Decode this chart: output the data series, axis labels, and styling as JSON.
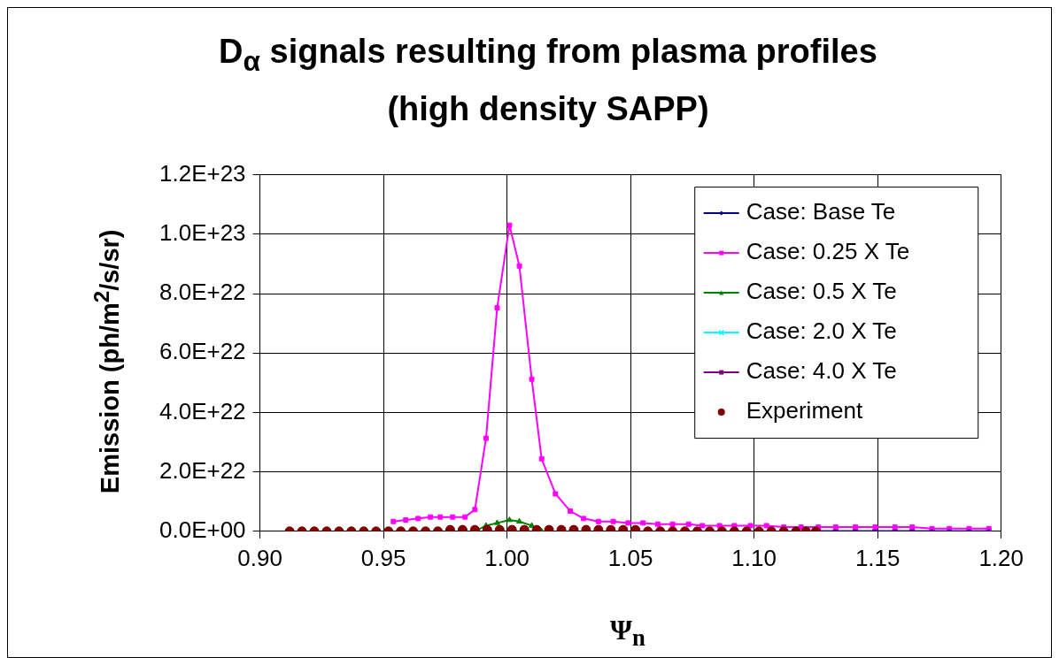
{
  "chart_data": {
    "type": "line",
    "title": "D$_{α}$ signals resulting from plasma profiles (high density SAPP)",
    "xlabel": "Ψ$_{n}$",
    "ylabel": "Emission (ph/m$^{2}$/s/sr)",
    "xlim": [
      0.9,
      1.2
    ],
    "xticks": [
      {
        "value": 0.9,
        "label": "0.90"
      },
      {
        "value": 0.95,
        "label": "0.95"
      },
      {
        "value": 1.0,
        "label": "1.00"
      },
      {
        "value": 1.05,
        "label": "1.05"
      },
      {
        "value": 1.1,
        "label": "1.10"
      },
      {
        "value": 1.15,
        "label": "1.15"
      },
      {
        "value": 1.2,
        "label": "1.20"
      }
    ],
    "ylim": [
      0,
      1.2e+23
    ],
    "yticks": [
      {
        "value": 0,
        "label": "0.0E+00"
      },
      {
        "value": 2e+22,
        "label": "2.0E+22"
      },
      {
        "value": 4e+22,
        "label": "4.0E+22"
      },
      {
        "value": 6e+22,
        "label": "6.0E+22"
      },
      {
        "value": 8e+22,
        "label": "8.0E+22"
      },
      {
        "value": 1e+23,
        "label": "1.0E+23"
      },
      {
        "value": 1.2e+23,
        "label": "1.2E+23"
      }
    ],
    "grid": true,
    "legend": "top right",
    "series": [
      {
        "name": "Case: Base Te",
        "color": "#000080",
        "marker": "diamond",
        "x": [
          1.126,
          1.133,
          1.141,
          1.149,
          1.157,
          1.164,
          1.172,
          1.179,
          1.187,
          1.195
        ],
        "values": [
          0,
          0,
          0,
          0,
          0,
          0,
          0,
          0,
          0,
          0
        ]
      },
      {
        "name": "Case: 0.25 X Te",
        "color": "#ff00ff",
        "marker": "square",
        "x": [
          0.954,
          0.959,
          0.964,
          0.969,
          0.973,
          0.978,
          0.983,
          0.987,
          0.9915,
          0.996,
          1.001,
          1.005,
          1.01,
          1.014,
          1.0196,
          1.0256,
          1.031,
          1.037,
          1.043,
          1.049,
          1.055,
          1.061,
          1.067,
          1.0735,
          1.079,
          1.086,
          1.092,
          1.0985,
          1.105,
          1.112,
          1.119,
          1.126,
          1.133,
          1.141,
          1.149,
          1.157,
          1.164,
          1.172,
          1.179,
          1.187,
          1.195
        ],
        "values": [
          3.3e+21,
          3.8e+21,
          4.3e+21,
          4.8e+21,
          4.8e+21,
          4.8e+21,
          4.8e+21,
          7.3e+21,
          3.13e+22,
          7.52e+22,
          1.03e+23,
          8.93e+22,
          5.12e+22,
          2.44e+22,
          1.26e+22,
          6.8e+21,
          4.3e+21,
          3.3e+21,
          3.3e+21,
          2.8e+21,
          2.8e+21,
          2.4e+21,
          2.4e+21,
          2.4e+21,
          1.9e+21,
          1.9e+21,
          1.9e+21,
          1.9e+21,
          1.9e+21,
          1.4e+21,
          1.4e+21,
          1.4e+21,
          1.4e+21,
          1.4e+21,
          1.4e+21,
          1.4e+21,
          1.4e+21,
          9e+20,
          9e+20,
          9e+20,
          9e+20
        ]
      },
      {
        "name": "Case: 0.5 X Te",
        "color": "#008000",
        "marker": "triangle",
        "x": [
          0.987,
          0.9915,
          0.996,
          1.001,
          1.005,
          1.01,
          1.014
        ],
        "values": [
          0,
          1.9e+21,
          2.8e+21,
          3.8e+21,
          3.3e+21,
          1.9e+21,
          0
        ]
      },
      {
        "name": "Case: 2.0 X Te",
        "color": "#00ffff",
        "marker": "cross"
      },
      {
        "name": "Case: 4.0 X Te",
        "color": "#800080",
        "marker": "square",
        "x": [
          1.126,
          1.133,
          1.141,
          1.149,
          1.157,
          1.164,
          1.172,
          1.179,
          1.187,
          1.195
        ],
        "values": [
          0,
          0,
          0,
          0,
          0,
          0,
          0,
          0,
          0,
          0
        ]
      },
      {
        "name": "Experiment",
        "type": "scatter",
        "color": "#800000",
        "marker": "circle",
        "x": [
          0.912,
          0.917,
          0.922,
          0.927,
          0.932,
          0.937,
          0.942,
          0.947,
          0.952,
          0.957,
          0.962,
          0.967,
          0.972,
          0.977,
          0.982,
          0.987,
          0.992,
          0.997,
          1.002,
          1.007,
          1.012,
          1.017,
          1.022,
          1.027,
          1.032,
          1.037,
          1.042,
          1.047,
          1.052,
          1.057,
          1.062,
          1.067,
          1.072,
          1.077,
          1.082,
          1.087,
          1.092,
          1.097,
          1.102,
          1.107,
          1.112,
          1.117,
          1.121,
          1.125
        ],
        "values": [
          0,
          0,
          0,
          0,
          0,
          0,
          0,
          0,
          0,
          0,
          0,
          0,
          0,
          5e+20,
          5e+20,
          5e+20,
          5e+20,
          5e+20,
          5e+20,
          5e+20,
          5e+20,
          5e+20,
          5e+20,
          5e+20,
          5e+20,
          5e+20,
          5e+20,
          5e+20,
          5e+20,
          0,
          0,
          0,
          0,
          0,
          0,
          0,
          0,
          0,
          0,
          0,
          0,
          0,
          0,
          0
        ]
      }
    ]
  }
}
